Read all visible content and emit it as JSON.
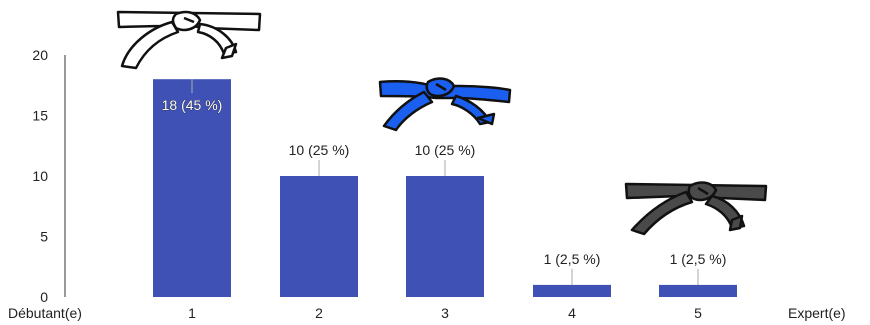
{
  "chart_data": {
    "type": "bar",
    "categories": [
      "1",
      "2",
      "3",
      "4",
      "5"
    ],
    "values": [
      18,
      10,
      10,
      1,
      1
    ],
    "data_labels": [
      "18 (45 %)",
      "10 (25 %)",
      "10 (25 %)",
      "1 (2,5 %)",
      "1 (2,5 %)"
    ],
    "ylim": [
      0,
      20
    ],
    "yticks": [
      0,
      5,
      10,
      15,
      20
    ],
    "x_start_label": "Débutant(e)",
    "x_end_label": "Expert(e)",
    "grid": false,
    "bar_color": "#3f51b5",
    "belt_decorations": [
      {
        "name": "white-belt-icon",
        "color": "#ffffff",
        "above_category": "1"
      },
      {
        "name": "blue-belt-icon",
        "color": "#1a5ff0",
        "above_category": "3"
      },
      {
        "name": "black-belt-icon",
        "color": "#4a4a4a",
        "above_category": "5"
      }
    ]
  }
}
